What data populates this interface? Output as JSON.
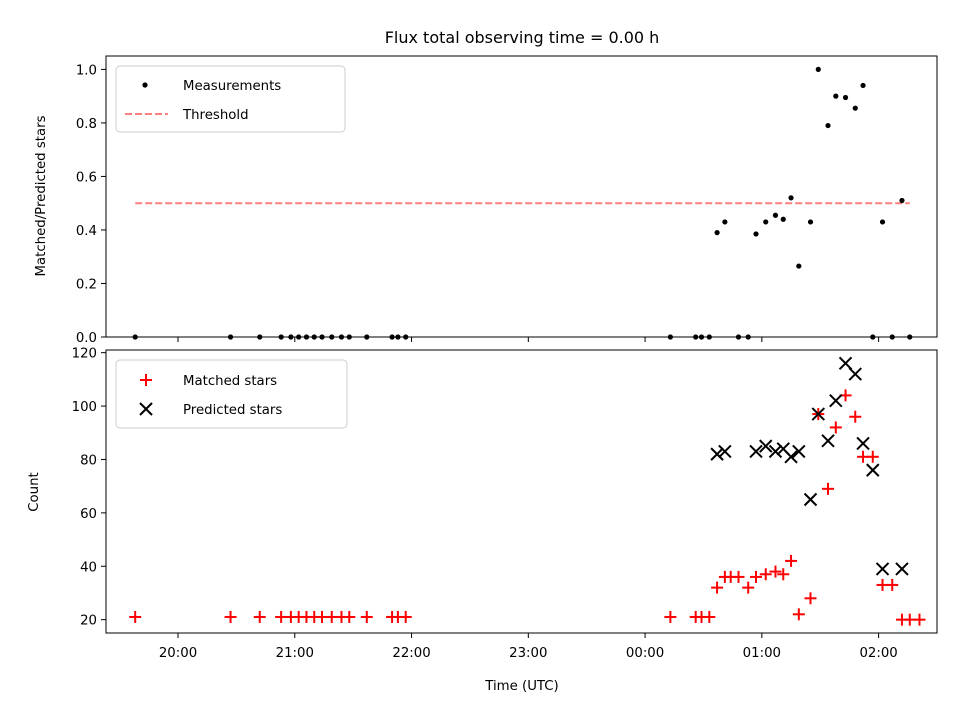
{
  "title": "Flux total observing time = 0.00 h",
  "chart_data": [
    {
      "type": "scatter",
      "ylabel": "Matched/Predicted stars",
      "xlabel": "",
      "ylim": [
        0,
        1.05
      ],
      "yticks": [
        "0.0",
        "0.2",
        "0.4",
        "0.6",
        "0.8",
        "1.0"
      ],
      "ytick_values": [
        0,
        0.2,
        0.4,
        0.6,
        0.8,
        1.0
      ],
      "xticks_visible_labels": false,
      "legend_position": "upper-left",
      "series": [
        {
          "name": "Measurements",
          "style": "dot",
          "color": "#000000",
          "x": [
            "19:38",
            "20:27",
            "20:42",
            "20:53",
            "20:58",
            "21:02",
            "21:06",
            "21:10",
            "21:14",
            "21:19",
            "21:24",
            "21:28",
            "21:37",
            "21:50",
            "21:53",
            "21:57",
            "00:13",
            "00:26",
            "00:29",
            "00:33",
            "00:37",
            "00:41",
            "00:48",
            "00:53",
            "00:57",
            "01:02",
            "01:07",
            "01:11",
            "01:15",
            "01:19",
            "01:25",
            "01:29",
            "01:34",
            "01:38",
            "01:43",
            "01:48",
            "01:52",
            "01:57",
            "02:02",
            "02:07",
            "02:12",
            "02:16"
          ],
          "y": [
            0,
            0,
            0,
            0,
            0,
            0,
            0,
            0,
            0,
            0,
            0,
            0,
            0,
            0,
            0,
            0,
            0,
            0,
            0,
            0,
            0.39,
            0.43,
            0,
            0,
            0.385,
            0.43,
            0.455,
            0.44,
            0.52,
            0.265,
            0.43,
            1.0,
            0.79,
            0.9,
            0.895,
            0.855,
            0.94,
            0,
            0.43,
            0,
            0.51,
            0
          ]
        },
        {
          "name": "Threshold",
          "style": "dashed-line",
          "color": "#ff7f7f",
          "x": [
            "19:38",
            "02:16"
          ],
          "y": [
            0.5,
            0.5
          ]
        }
      ]
    },
    {
      "type": "scatter",
      "ylabel": "Count",
      "xlabel": "Time (UTC)",
      "ylim": [
        15,
        121
      ],
      "yticks": [
        "20",
        "40",
        "60",
        "80",
        "100",
        "120"
      ],
      "ytick_values": [
        20,
        40,
        60,
        80,
        100,
        120
      ],
      "xlim": [
        "19:23",
        "02:30"
      ],
      "xticks": [
        "20:00",
        "21:00",
        "22:00",
        "23:00",
        "00:00",
        "01:00",
        "02:00"
      ],
      "legend_position": "upper-left",
      "series": [
        {
          "name": "Matched stars",
          "marker": "+",
          "color": "#ff0000",
          "x": [
            "19:38",
            "20:27",
            "20:42",
            "20:53",
            "20:58",
            "21:02",
            "21:06",
            "21:10",
            "21:14",
            "21:19",
            "21:24",
            "21:28",
            "21:37",
            "21:50",
            "21:53",
            "21:57",
            "00:13",
            "00:26",
            "00:29",
            "00:33",
            "00:37",
            "00:41",
            "00:44",
            "00:48",
            "00:53",
            "00:57",
            "01:02",
            "01:07",
            "01:11",
            "01:15",
            "01:19",
            "01:25",
            "01:29",
            "01:34",
            "01:38",
            "01:43",
            "01:48",
            "01:52",
            "01:57",
            "02:02",
            "02:07",
            "02:12",
            "02:16",
            "02:21"
          ],
          "y": [
            21,
            21,
            21,
            21,
            21,
            21,
            21,
            21,
            21,
            21,
            21,
            21,
            21,
            21,
            21,
            21,
            21,
            21,
            21,
            21,
            32,
            36,
            36,
            36,
            32,
            36,
            37,
            38,
            37,
            42,
            22,
            28,
            97,
            69,
            92,
            104,
            96,
            81,
            81,
            33,
            33,
            20,
            20,
            20
          ]
        },
        {
          "name": "Predicted stars",
          "marker": "x",
          "color": "#000000",
          "x": [
            "00:37",
            "00:41",
            "00:57",
            "01:02",
            "01:07",
            "01:11",
            "01:15",
            "01:19",
            "01:25",
            "01:29",
            "01:34",
            "01:38",
            "01:43",
            "01:48",
            "01:52",
            "01:57",
            "02:02",
            "02:12"
          ],
          "y": [
            82,
            83,
            83,
            85,
            83,
            84,
            81,
            83,
            65,
            97,
            87,
            102,
            116,
            112,
            86,
            76,
            39,
            39
          ]
        }
      ]
    }
  ]
}
